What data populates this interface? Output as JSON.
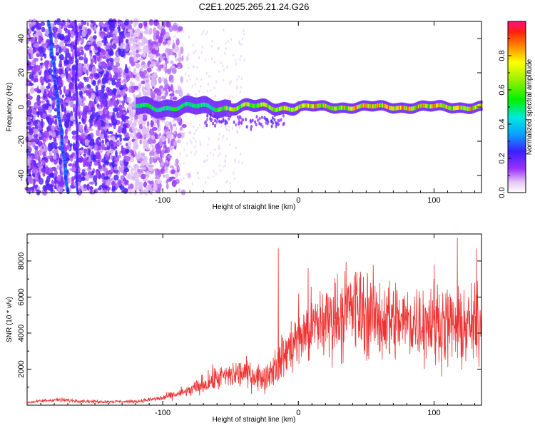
{
  "title": "C2E1.2025.265.21.24.G26",
  "chart_data": [
    {
      "type": "heatmap",
      "name": "spectrogram",
      "xlabel": "Height of straight line (km)",
      "ylabel": "Frequency (Hz)",
      "xlim": [
        -200,
        135
      ],
      "ylim": [
        -50,
        50
      ],
      "xticks": [
        -100,
        0,
        100
      ],
      "yticks": [
        -40,
        -20,
        0,
        20,
        40
      ],
      "features": {
        "carrier_center_hz": 0,
        "carrier_start_km": -120,
        "dense_noise_end_km": -110,
        "diagonal_track": {
          "x_top_km": -164,
          "x_bottom_km": -163,
          "secondary_x_top_km": -184,
          "secondary_x_bottom_km": -170
        }
      },
      "colorbar": {
        "label": "Normalized spectral amplitude",
        "range": [
          0,
          1
        ],
        "ticks": [
          0.0,
          0.2,
          0.4,
          0.6,
          0.8
        ]
      }
    },
    {
      "type": "line",
      "name": "snr",
      "xlabel": "Height of straight line (km)",
      "ylabel": "SNR (10 * v/v)",
      "xlim": [
        -200,
        135
      ],
      "ylim": [
        0,
        9500
      ],
      "xticks": [
        -100,
        0,
        100
      ],
      "yticks": [
        2000,
        4000,
        6000,
        8000
      ],
      "color": "#ee3333",
      "envelope": {
        "x": [
          -200,
          -180,
          -150,
          -120,
          -100,
          -80,
          -60,
          -40,
          -25,
          -10,
          0,
          20,
          40,
          60,
          80,
          100,
          120,
          135
        ],
        "y": [
          150,
          300,
          200,
          200,
          400,
          800,
          1500,
          1800,
          1500,
          2800,
          3800,
          4700,
          5400,
          4800,
          4600,
          4700,
          4300,
          4500
        ]
      },
      "spikes": [
        {
          "x": -15,
          "y": 8700
        },
        {
          "x": 7,
          "y": 7600
        },
        {
          "x": 42,
          "y": 7400
        },
        {
          "x": 67,
          "y": 6900
        },
        {
          "x": 100,
          "y": 7800
        },
        {
          "x": 117,
          "y": 9300
        },
        {
          "x": 131,
          "y": 8700
        }
      ]
    }
  ]
}
